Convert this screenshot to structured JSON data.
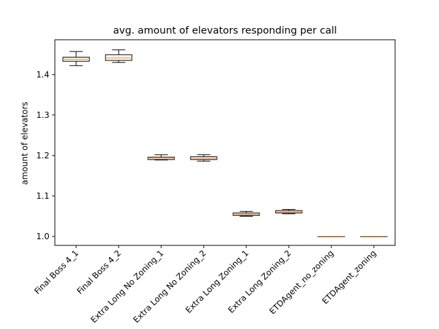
{
  "chart_data": {
    "type": "boxplot",
    "title": "avg. amount of elevators responding per call",
    "xlabel": "",
    "ylabel": "amount of elevators",
    "ylim": [
      0.978,
      1.486
    ],
    "yticks": [
      1.0,
      1.1,
      1.2,
      1.3,
      1.4
    ],
    "ytick_labels": [
      "1.0",
      "1.1",
      "1.2",
      "1.3",
      "1.4"
    ],
    "grid": false,
    "median_color": "#ff7f0e",
    "box_color": "#000000",
    "categories": [
      "Final Boss 4_1",
      "Final Boss 4_2",
      "Extra Long No Zoning_1",
      "Extra Long No Zoning_2",
      "Extra Long Zoning_1",
      "Extra Long Zoning_2",
      "ETDAgent_no_zoning",
      "ETDAgent_zoning"
    ],
    "boxes": [
      {
        "whislo": 1.422,
        "q1": 1.433,
        "med": 1.438,
        "q3": 1.443,
        "whishi": 1.457
      },
      {
        "whislo": 1.43,
        "q1": 1.435,
        "med": 1.441,
        "q3": 1.449,
        "whishi": 1.461
      },
      {
        "whislo": 1.189,
        "q1": 1.19,
        "med": 1.193,
        "q3": 1.196,
        "whishi": 1.202
      },
      {
        "whislo": 1.186,
        "q1": 1.19,
        "med": 1.193,
        "q3": 1.197,
        "whishi": 1.202
      },
      {
        "whislo": 1.05,
        "q1": 1.052,
        "med": 1.055,
        "q3": 1.058,
        "whishi": 1.062
      },
      {
        "whislo": 1.056,
        "q1": 1.058,
        "med": 1.061,
        "q3": 1.064,
        "whishi": 1.067
      },
      {
        "whislo": 1.0,
        "q1": 1.0,
        "med": 1.0,
        "q3": 1.0,
        "whishi": 1.0
      },
      {
        "whislo": 1.0,
        "q1": 1.0,
        "med": 1.0,
        "q3": 1.0,
        "whishi": 1.0
      }
    ]
  }
}
